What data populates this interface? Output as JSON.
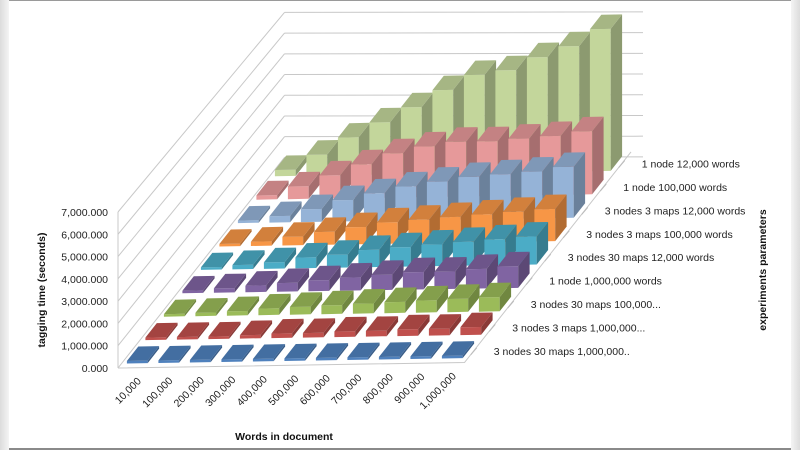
{
  "chart_data": {
    "type": "bar",
    "subtype": "3d-column",
    "title": "",
    "xlabel": "Words in document",
    "ylabel": "tagging time (seconds)",
    "zlabel": "experiments parameters",
    "ylim": [
      0,
      7000000
    ],
    "yticks": [
      "0.000",
      "1,000.000",
      "2,000.000",
      "3,000.000",
      "4,000.000",
      "5,000.000",
      "6,000.000",
      "7,000.000"
    ],
    "ytick_labels": [
      "0.000",
      "1,000,000",
      "2,000,000",
      "3,000,000",
      "4,000,000",
      "5,000,000",
      "6,000,000",
      "7,000,000"
    ],
    "categories": [
      "10,000",
      "100,000",
      "200,000",
      "300,000",
      "400,000",
      "500,000",
      "600,000",
      "700,000",
      "800,000",
      "900,000",
      "1,000,000"
    ],
    "grid": true,
    "series": [
      {
        "name": "3 nodes 30 maps 1,000,000..",
        "color": "#4f81bd",
        "values": [
          50000,
          50000,
          50000,
          50000,
          50000,
          50000,
          50000,
          50000,
          50000,
          50000,
          50000
        ]
      },
      {
        "name": "3 nodes 3 maps  1,000,000...",
        "color": "#c0504d",
        "values": [
          50000,
          100000,
          100000,
          150000,
          200000,
          200000,
          250000,
          250000,
          300000,
          300000,
          350000
        ]
      },
      {
        "name": "3 nodes 30 maps 100,000...",
        "color": "#9bbb59",
        "values": [
          100000,
          150000,
          200000,
          300000,
          350000,
          400000,
          450000,
          500000,
          550000,
          600000,
          650000
        ]
      },
      {
        "name": "1 node 1,000,000 words",
        "color": "#8064a2",
        "values": [
          100000,
          200000,
          300000,
          400000,
          500000,
          600000,
          700000,
          800000,
          800000,
          900000,
          1000000
        ]
      },
      {
        "name": "3 nodes 30 maps 12,000 words",
        "color": "#4bacc6",
        "values": [
          100000,
          200000,
          300000,
          500000,
          600000,
          800000,
          900000,
          1000000,
          1100000,
          1200000,
          1300000
        ]
      },
      {
        "name": "3 nodes 3 maps  100,000 words",
        "color": "#f79646",
        "values": [
          100000,
          200000,
          400000,
          600000,
          800000,
          1000000,
          1100000,
          1200000,
          1300000,
          1400000,
          1500000
        ]
      },
      {
        "name": "3 nodes 3 maps  12,000 words",
        "color": "#95b3d7",
        "values": [
          100000,
          300000,
          600000,
          1000000,
          1300000,
          1600000,
          1800000,
          2000000,
          2100000,
          2200000,
          2400000
        ]
      },
      {
        "name": "1 node 100,000 words",
        "color": "#e6999a",
        "values": [
          200000,
          600000,
          1100000,
          1600000,
          2100000,
          2400000,
          2600000,
          2600000,
          2700000,
          2800000,
          3000000
        ]
      },
      {
        "name": "1 node 12,000 words",
        "color": "#c3d69b",
        "values": [
          300000,
          1000000,
          1800000,
          2500000,
          3200000,
          4000000,
          4700000,
          4900000,
          5500000,
          6000000,
          6800000
        ]
      }
    ]
  },
  "labels": {
    "xlabel": "Words in document",
    "ylabel": "tagging time (seconds)",
    "zlabel": "experiments parameters"
  }
}
